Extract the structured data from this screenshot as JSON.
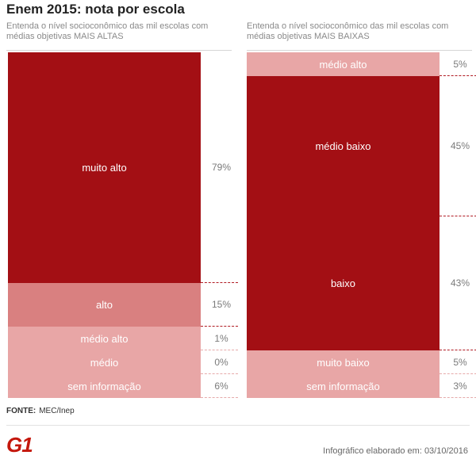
{
  "title": "Enem 2015: nota por escola",
  "source": {
    "label": "FONTE:",
    "text": "MEC/Inep"
  },
  "logo": "G1",
  "credit": "Infográfico elaborado em: 03/10/2016",
  "colors": {
    "muito alto": "#a30f14",
    "médio baixo": "#a30f14",
    "baixo": "#a30f14",
    "alto": "#d98080",
    "médio alto": "#e8a6a6",
    "médio": "#e8a6a6",
    "sem informação": "#e8a6a6",
    "muito baixo": "#e8a6a6",
    "separator": "#b01a22"
  },
  "chart_data": [
    {
      "type": "bar",
      "stacked": true,
      "subtitle": "Entenda o nível socioconômico das mil escolas com médias objetivas MAIS ALTAS",
      "unit": "%",
      "segments": [
        {
          "label": "muito alto",
          "value": 79,
          "value_label": "79%"
        },
        {
          "label": "alto",
          "value": 15,
          "value_label": "15%"
        },
        {
          "label": "médio alto",
          "value": 1,
          "value_label": "1%"
        },
        {
          "label": "médio",
          "value": 0,
          "value_label": "0%"
        },
        {
          "label": "sem informação",
          "value": 6,
          "value_label": "6%"
        }
      ]
    },
    {
      "type": "bar",
      "stacked": true,
      "subtitle": "Entenda o nível socioconômico das mil escolas com médias objetivas MAIS BAIXAS",
      "unit": "%",
      "segments": [
        {
          "label": "médio alto",
          "value": 5,
          "value_label": "5%"
        },
        {
          "label": "médio baixo",
          "value": 45,
          "value_label": "45%"
        },
        {
          "label": "baixo",
          "value": 43,
          "value_label": "43%"
        },
        {
          "label": "muito baixo",
          "value": 5,
          "value_label": "5%"
        },
        {
          "label": "sem informação",
          "value": 3,
          "value_label": "3%"
        }
      ]
    }
  ]
}
